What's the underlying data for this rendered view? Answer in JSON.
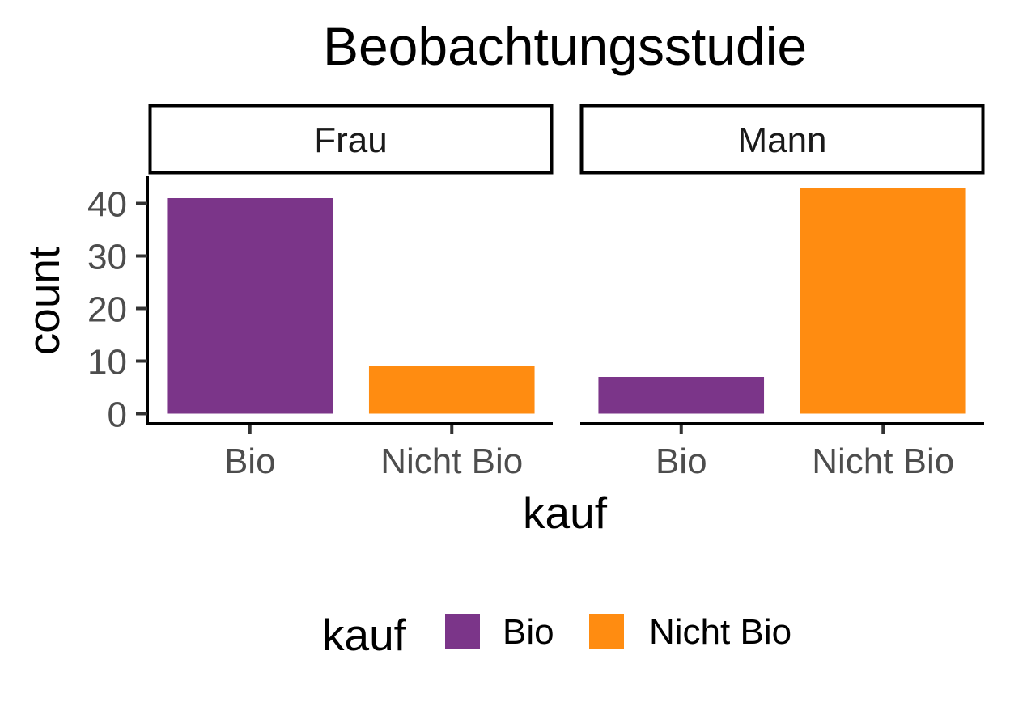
{
  "chart_data": {
    "type": "bar",
    "title": "Beobachtungsstudie",
    "xlabel": "kauf",
    "ylabel": "count",
    "ylim": [
      0,
      45
    ],
    "yticks": [
      0,
      10,
      20,
      30,
      40
    ],
    "categories": [
      "Bio",
      "Nicht Bio"
    ],
    "facets": [
      {
        "label": "Frau",
        "values": [
          41,
          9
        ]
      },
      {
        "label": "Mann",
        "values": [
          7,
          43
        ]
      }
    ],
    "legend": {
      "title": "kauf",
      "position": "bottom",
      "items": [
        {
          "label": "Bio",
          "color": "#7b3589"
        },
        {
          "label": "Nicht Bio",
          "color": "#ff8c11"
        }
      ]
    },
    "grid": false
  }
}
